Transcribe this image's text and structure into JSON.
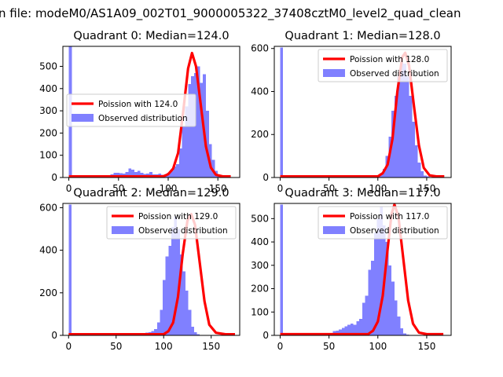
{
  "figure": {
    "suptitle": "n file: modeM0/AS1A09_002T01_9000005322_37408cztM0_level2_quad_clean"
  },
  "colors": {
    "hist": "#8080ff",
    "curve": "#ff0000",
    "axis": "#000000"
  },
  "chart_data": [
    {
      "type": "bar",
      "title": "Quadrant 0: Median=124.0",
      "xticks": [
        0,
        50,
        100,
        150
      ],
      "yticks": [
        0,
        100,
        200,
        300,
        400,
        500
      ],
      "xlim": [
        -6,
        172
      ],
      "ylim": [
        0,
        590
      ],
      "legend": {
        "position": "center-left",
        "line_label": "Poission with 124.0",
        "hist_label": "Observed distribution"
      },
      "hist": {
        "start": 0,
        "width": 3,
        "values": [
          590,
          0,
          0,
          0,
          0,
          0,
          0,
          0,
          0,
          0,
          0,
          0,
          5,
          10,
          15,
          22,
          22,
          20,
          17,
          25,
          40,
          36,
          25,
          30,
          22,
          16,
          18,
          24,
          15,
          14,
          18,
          12,
          14,
          22,
          30,
          50,
          60,
          130,
          230,
          320,
          420,
          455,
          470,
          500,
          425,
          465,
          300,
          150,
          80,
          30,
          6
        ]
      },
      "curve": {
        "lambda": 124.0,
        "x_range": [
          0,
          163
        ],
        "points": [
          [
            0,
            5
          ],
          [
            95,
            5
          ],
          [
            100,
            15
          ],
          [
            105,
            40
          ],
          [
            110,
            110
          ],
          [
            115,
            290
          ],
          [
            120,
            490
          ],
          [
            124,
            560
          ],
          [
            128,
            500
          ],
          [
            133,
            320
          ],
          [
            138,
            140
          ],
          [
            143,
            45
          ],
          [
            148,
            12
          ],
          [
            155,
            5
          ],
          [
            163,
            5
          ]
        ]
      }
    },
    {
      "type": "bar",
      "title": "Quadrant 1: Median=128.0",
      "xticks": [
        0,
        50,
        100,
        150
      ],
      "yticks": [
        0,
        200,
        400,
        600
      ],
      "xlim": [
        -6,
        175
      ],
      "ylim": [
        0,
        610
      ],
      "legend": {
        "position": "top-right",
        "line_label": "Poission with 128.0",
        "hist_label": "Observed distribution"
      },
      "hist": {
        "start": 0,
        "width": 3,
        "values": [
          605,
          0,
          0,
          0,
          0,
          0,
          0,
          0,
          0,
          0,
          0,
          0,
          0,
          0,
          0,
          0,
          0,
          0,
          0,
          0,
          0,
          0,
          0,
          0,
          0,
          0,
          0,
          0,
          0,
          0,
          0,
          0,
          5,
          10,
          20,
          40,
          100,
          190,
          310,
          380,
          470,
          560,
          530,
          470,
          380,
          260,
          150,
          70,
          30,
          10,
          5,
          2
        ]
      },
      "curve": {
        "lambda": 128.0,
        "x_range": [
          0,
          168
        ],
        "points": [
          [
            0,
            5
          ],
          [
            100,
            5
          ],
          [
            105,
            20
          ],
          [
            110,
            60
          ],
          [
            115,
            180
          ],
          [
            120,
            400
          ],
          [
            125,
            560
          ],
          [
            128,
            580
          ],
          [
            132,
            520
          ],
          [
            137,
            330
          ],
          [
            142,
            150
          ],
          [
            147,
            45
          ],
          [
            153,
            10
          ],
          [
            160,
            5
          ],
          [
            168,
            5
          ]
        ]
      }
    },
    {
      "type": "bar",
      "title": "Quadrant 2: Median=129.0",
      "xticks": [
        0,
        50,
        100,
        150
      ],
      "yticks": [
        0,
        200,
        400,
        600
      ],
      "xlim": [
        -6,
        180
      ],
      "ylim": [
        0,
        620
      ],
      "legend": {
        "position": "top-right",
        "line_label": "Poission with 129.0",
        "hist_label": "Observed distribution"
      },
      "hist": {
        "start": 0,
        "width": 3,
        "values": [
          615,
          0,
          0,
          0,
          0,
          0,
          0,
          0,
          0,
          0,
          0,
          0,
          0,
          0,
          0,
          0,
          0,
          0,
          0,
          0,
          0,
          0,
          0,
          0,
          0,
          5,
          8,
          12,
          15,
          20,
          30,
          60,
          120,
          260,
          370,
          420,
          510,
          560,
          500,
          380,
          300,
          210,
          120,
          40,
          15,
          5
        ]
      },
      "curve": {
        "lambda": 129.0,
        "x_range": [
          0,
          175
        ],
        "points": [
          [
            0,
            5
          ],
          [
            100,
            5
          ],
          [
            105,
            20
          ],
          [
            110,
            60
          ],
          [
            115,
            180
          ],
          [
            120,
            380
          ],
          [
            125,
            540
          ],
          [
            129,
            570
          ],
          [
            133,
            520
          ],
          [
            138,
            340
          ],
          [
            143,
            160
          ],
          [
            148,
            50
          ],
          [
            155,
            12
          ],
          [
            165,
            5
          ],
          [
            175,
            5
          ]
        ]
      }
    },
    {
      "type": "bar",
      "title": "Quadrant 3: Median=117.0",
      "xticks": [
        0,
        50,
        100,
        150
      ],
      "yticks": [
        0,
        100,
        200,
        300,
        400,
        500
      ],
      "xlim": [
        -6,
        175
      ],
      "ylim": [
        0,
        565
      ],
      "legend": {
        "position": "top-right",
        "line_label": "Poission with 117.0",
        "hist_label": "Observed distribution"
      },
      "hist": {
        "start": 0,
        "width": 3,
        "values": [
          560,
          0,
          0,
          0,
          0,
          0,
          0,
          0,
          0,
          0,
          0,
          0,
          0,
          0,
          0,
          0,
          0,
          10,
          18,
          20,
          25,
          32,
          38,
          45,
          50,
          45,
          60,
          70,
          140,
          170,
          280,
          320,
          440,
          500,
          550,
          470,
          400,
          300,
          230,
          150,
          80,
          30,
          8,
          3
        ]
      },
      "curve": {
        "lambda": 117.0,
        "x_range": [
          0,
          167
        ],
        "points": [
          [
            0,
            5
          ],
          [
            90,
            5
          ],
          [
            95,
            20
          ],
          [
            100,
            60
          ],
          [
            105,
            170
          ],
          [
            110,
            370
          ],
          [
            114,
            520
          ],
          [
            117,
            560
          ],
          [
            121,
            510
          ],
          [
            126,
            330
          ],
          [
            131,
            150
          ],
          [
            136,
            50
          ],
          [
            142,
            12
          ],
          [
            150,
            5
          ],
          [
            167,
            5
          ]
        ]
      }
    }
  ]
}
